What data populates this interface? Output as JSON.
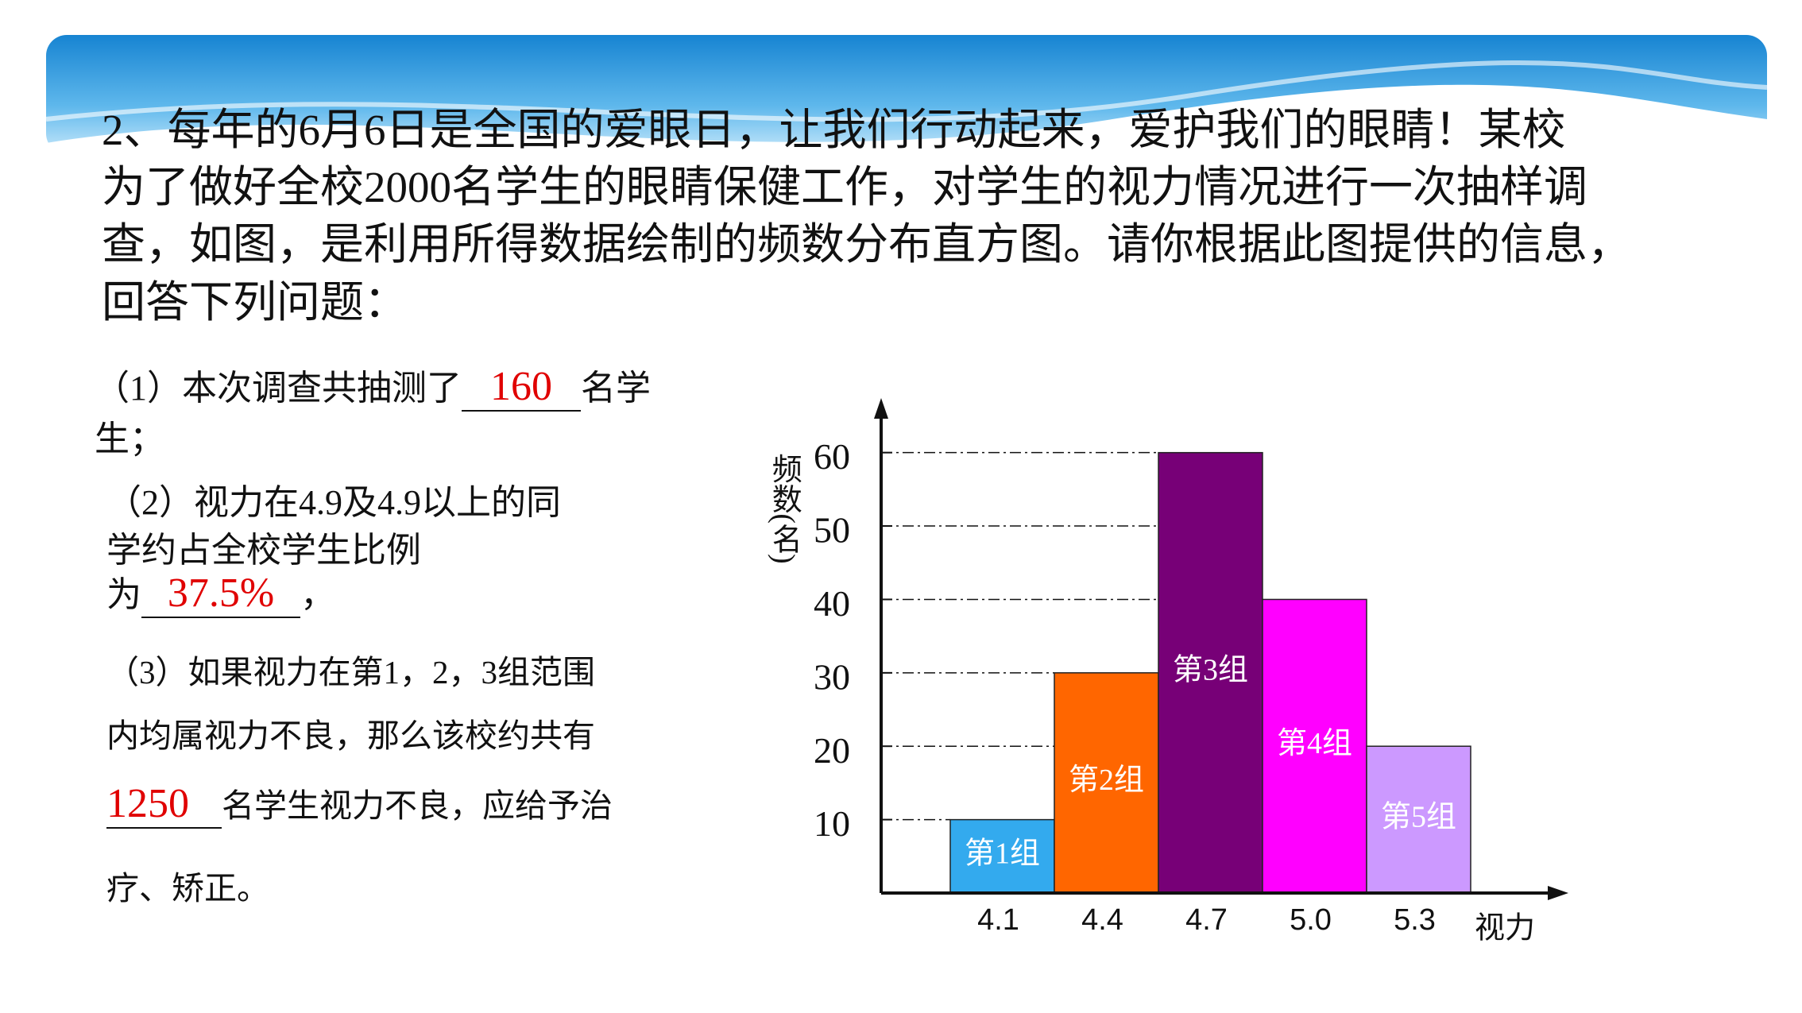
{
  "problem_lines": [
    "2、每年的6月6日是全国的爱眼日，让我们行动起来，爱护我们的眼睛！某校",
    "为了做好全校2000名学生的眼睛保健工作，对学生的视力情况进行一次抽样调",
    "查，如图，是利用所得数据绘制的频数分布直方图。请你根据此图提供的信息，",
    "回答下列问题："
  ],
  "questions": [
    {
      "lines": [
        "（1）本次调查共抽测了",
        "名学",
        "生；"
      ],
      "answer": "160"
    },
    {
      "lines": [
        "（2）视力在4.9及4.9以上的同",
        "学约占全校学生比例",
        "为",
        "，"
      ],
      "answer": "37.5%"
    },
    {
      "lines": [
        "（3）如果视力在第1，2，3组范围",
        "内均属视力不良，那么该校约共有",
        "名学生视力不良，应给予治",
        "疗、矫正。"
      ],
      "answer": "1250"
    }
  ],
  "chart_data": {
    "type": "bar",
    "x_label": "视力",
    "y_label": "频数(名)",
    "categories": [
      "4.1",
      "4.4",
      "4.7",
      "5.0",
      "5.3"
    ],
    "values": [
      10,
      30,
      60,
      40,
      20
    ],
    "group_labels": [
      "第1组",
      "第2组",
      "第3组",
      "第4组",
      "第5组"
    ],
    "colors": [
      "#33aaee",
      "#ff6600",
      "#770077",
      "#ff00ff",
      "#cc99ff"
    ],
    "ylim": [
      0,
      67
    ],
    "yticks": [
      10,
      20,
      30,
      40,
      50,
      60
    ],
    "grid": true
  }
}
